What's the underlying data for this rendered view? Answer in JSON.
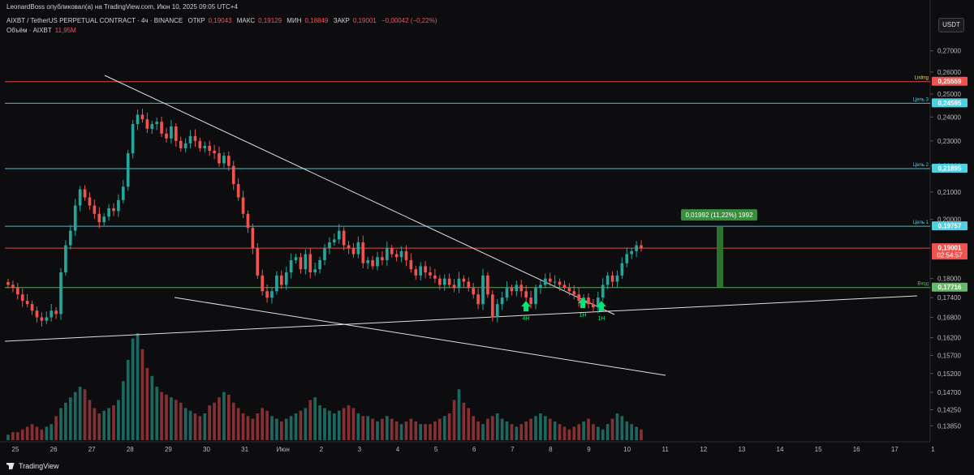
{
  "header": {
    "published": "LeonardBoss опубликовал(а) на TradingView.com, Июн 10, 2025 09:05 UTC+4",
    "symbol": "AIXBT / TetherUS PERPETUAL CONTRACT · 4ч · BINANCE",
    "open_label": "ОТКР",
    "open": "0,19043",
    "high_label": "МАКС",
    "high": "0,19129",
    "low_label": "МИН",
    "low": "0,18849",
    "close_label": "ЗАКР",
    "close": "0,19001",
    "change": "−0,00042 (−0,22%)",
    "volume_label": "Объём · AIXBT",
    "volume": "11,95M"
  },
  "currency": "USDT",
  "footer_brand": "TradingView",
  "colors": {
    "bull": "#26a69a",
    "bear": "#ef5350",
    "bg": "#0d0d0f",
    "cyan": "#4dd0e1",
    "red_line": "#ef5350",
    "green_line": "#66bb6a"
  },
  "chart_data": {
    "type": "candlestick",
    "timeframe": "4h",
    "x_ticks": [
      "25",
      "26",
      "27",
      "28",
      "29",
      "30",
      "31",
      "Июн",
      "2",
      "3",
      "4",
      "5",
      "6",
      "7",
      "8",
      "9",
      "10",
      "11",
      "12",
      "13",
      "14",
      "15",
      "16",
      "17",
      "1"
    ],
    "y_ticks": [
      "0,27000",
      "0,26000",
      "0,25000",
      "0,24000",
      "0,23000",
      "0,22000",
      "0,21000",
      "0,20000",
      "0,18000",
      "0,17400",
      "0,16800",
      "0,16200",
      "0,15700",
      "0,15200",
      "0,14700",
      "0,14250",
      "0,13850"
    ],
    "ylim": [
      0.135,
      0.277
    ],
    "y_scale": "log",
    "candles_close": [
      0.178,
      0.177,
      0.175,
      0.173,
      0.172,
      0.17,
      0.168,
      0.167,
      0.168,
      0.17,
      0.169,
      0.182,
      0.191,
      0.196,
      0.205,
      0.211,
      0.208,
      0.205,
      0.202,
      0.199,
      0.201,
      0.204,
      0.203,
      0.207,
      0.212,
      0.225,
      0.237,
      0.241,
      0.239,
      0.235,
      0.237,
      0.238,
      0.233,
      0.231,
      0.236,
      0.23,
      0.227,
      0.229,
      0.232,
      0.23,
      0.227,
      0.228,
      0.226,
      0.225,
      0.221,
      0.224,
      0.22,
      0.213,
      0.208,
      0.202,
      0.197,
      0.19,
      0.181,
      0.176,
      0.174,
      0.176,
      0.181,
      0.178,
      0.182,
      0.186,
      0.187,
      0.183,
      0.188,
      0.182,
      0.183,
      0.186,
      0.19,
      0.192,
      0.193,
      0.196,
      0.191,
      0.19,
      0.188,
      0.192,
      0.185,
      0.186,
      0.184,
      0.187,
      0.186,
      0.19,
      0.188,
      0.187,
      0.189,
      0.186,
      0.183,
      0.181,
      0.184,
      0.182,
      0.181,
      0.18,
      0.178,
      0.18,
      0.178,
      0.177,
      0.18,
      0.179,
      0.177,
      0.175,
      0.172,
      0.181,
      0.175,
      0.168,
      0.172,
      0.174,
      0.177,
      0.176,
      0.178,
      0.176,
      0.174,
      0.172,
      0.177,
      0.178,
      0.18,
      0.179,
      0.179,
      0.178,
      0.177,
      0.176,
      0.175,
      0.173,
      0.174,
      0.172,
      0.171,
      0.174,
      0.178,
      0.181,
      0.179,
      0.181,
      0.185,
      0.188,
      0.189,
      0.191,
      0.19
    ],
    "volumes": [
      2,
      3,
      3,
      4,
      5,
      6,
      5,
      4,
      5,
      6,
      9,
      12,
      14,
      16,
      18,
      20,
      19,
      15,
      12,
      10,
      11,
      12,
      13,
      15,
      22,
      30,
      38,
      40,
      34,
      27,
      24,
      20,
      18,
      17,
      16,
      15,
      14,
      12,
      11,
      10,
      9,
      10,
      13,
      14,
      16,
      18,
      17,
      14,
      12,
      10,
      9,
      8,
      10,
      12,
      11,
      9,
      8,
      7,
      8,
      9,
      10,
      11,
      12,
      15,
      16,
      13,
      12,
      11,
      10,
      11,
      12,
      13,
      12,
      10,
      9,
      9,
      8,
      7,
      8,
      9,
      8,
      7,
      6,
      7,
      8,
      7,
      6,
      6,
      6,
      7,
      8,
      9,
      10,
      15,
      19,
      14,
      12,
      9,
      7,
      6,
      8,
      9,
      10,
      8,
      7,
      6,
      5,
      6,
      7,
      8,
      9,
      10,
      9,
      8,
      7,
      6,
      5,
      4,
      5,
      6,
      7,
      8,
      6,
      5,
      4,
      6,
      8,
      10,
      9,
      7,
      6,
      5,
      4
    ],
    "horizontal_levels": [
      {
        "price": 0.25559,
        "label": "Listing",
        "badge": "0,25559",
        "color": "#ef5350"
      },
      {
        "price": 0.24595,
        "label": "Цель 3",
        "badge": "0,24595",
        "color": "#4dd0e1"
      },
      {
        "price": 0.21895,
        "label": "Цель 2",
        "badge": "0,21895",
        "color": "#4dd0e1"
      },
      {
        "price": 0.19757,
        "label": "Цель 1",
        "badge": "0,19757",
        "color": "#4dd0e1"
      },
      {
        "price": 0.19001,
        "label": "",
        "badge": "0,19001",
        "badge2": "02:54:57",
        "color": "#ef5350"
      },
      {
        "price": 0.17716,
        "label": "Вход",
        "badge": "0,17716",
        "color": "#66bb6a"
      }
    ],
    "measure_label": "0,01992 (11,22%) 1992",
    "signals": [
      {
        "label": "4H",
        "price": 0.172
      },
      {
        "label": "1H",
        "price": 0.173
      },
      {
        "label": "1H",
        "price": 0.172
      }
    ]
  }
}
